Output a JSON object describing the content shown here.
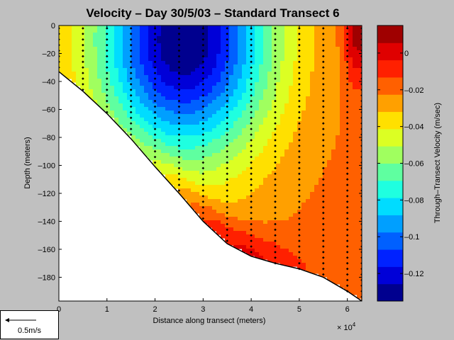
{
  "chart_data": {
    "type": "heatmap",
    "title": "Velocity – Day 30/5/03 – Standard Transect 6",
    "xlabel": "Distance along transect (meters)",
    "x_multiplier": "× 10",
    "x_multiplier_exp": "4",
    "ylabel": "Depth (meters)",
    "colorbar_label": "Through–Transect Velocity (m/sec)",
    "xlim": [
      0,
      6.3
    ],
    "ylim": [
      -197,
      0
    ],
    "x_ticks": [
      0,
      1,
      2,
      3,
      4,
      5,
      6
    ],
    "x_tick_labels": [
      "0",
      "1",
      "2",
      "3",
      "4",
      "5",
      "6"
    ],
    "y_ticks": [
      0,
      -20,
      -40,
      -60,
      -80,
      -100,
      -120,
      -140,
      -160,
      -180
    ],
    "y_tick_labels": [
      "0",
      "–20",
      "–40",
      "–60",
      "–80",
      "–100",
      "–120",
      "–140",
      "–160",
      "–180"
    ],
    "clim": [
      -0.135,
      0.015
    ],
    "colorbar_ticks": [
      0,
      -0.02,
      -0.04,
      -0.06,
      -0.08,
      -0.1,
      -0.12
    ],
    "colorbar_tick_labels": [
      "0",
      "–0.02",
      "–0.04",
      "–0.06",
      "–0.08",
      "–0.1",
      "–0.12"
    ],
    "colormap": [
      "#00008f",
      "#0000d8",
      "#0022ff",
      "#0060ff",
      "#009fff",
      "#00dcff",
      "#1fffe0",
      "#5fffa0",
      "#a0ff5f",
      "#dcff23",
      "#ffe000",
      "#ffa000",
      "#ff6000",
      "#ff2000",
      "#df0000",
      "#9f0000"
    ],
    "bottom_profile": [
      {
        "x": 0,
        "depth": -33
      },
      {
        "x": 0.5,
        "depth": -47
      },
      {
        "x": 1.0,
        "depth": -63
      },
      {
        "x": 1.5,
        "depth": -81
      },
      {
        "x": 2.0,
        "depth": -101
      },
      {
        "x": 2.5,
        "depth": -120
      },
      {
        "x": 3.0,
        "depth": -140
      },
      {
        "x": 3.5,
        "depth": -156
      },
      {
        "x": 4.0,
        "depth": -165
      },
      {
        "x": 4.5,
        "depth": -170
      },
      {
        "x": 5.0,
        "depth": -174
      },
      {
        "x": 5.5,
        "depth": -180
      },
      {
        "x": 6.0,
        "depth": -190
      },
      {
        "x": 6.3,
        "depth": -197
      }
    ],
    "velocity_model": {
      "core": {
        "x": 2.6,
        "depth": -10,
        "v": -0.135,
        "sx": 1.8,
        "sz": 85
      },
      "background": -0.02,
      "surface_east": {
        "x": 6.2,
        "v": 0.012
      },
      "bottom_warm": {
        "x": 3.9,
        "depth": -155,
        "v": 0.0
      }
    },
    "sample_stations": [
      0,
      0.5,
      1.0,
      1.5,
      2.0,
      2.5,
      3.0,
      3.5,
      4.0,
      4.5,
      5.0,
      5.5,
      6.0,
      6.3
    ],
    "sample_depth_spacing": 4
  },
  "scale_arrow": {
    "label": "0.5m/s"
  }
}
